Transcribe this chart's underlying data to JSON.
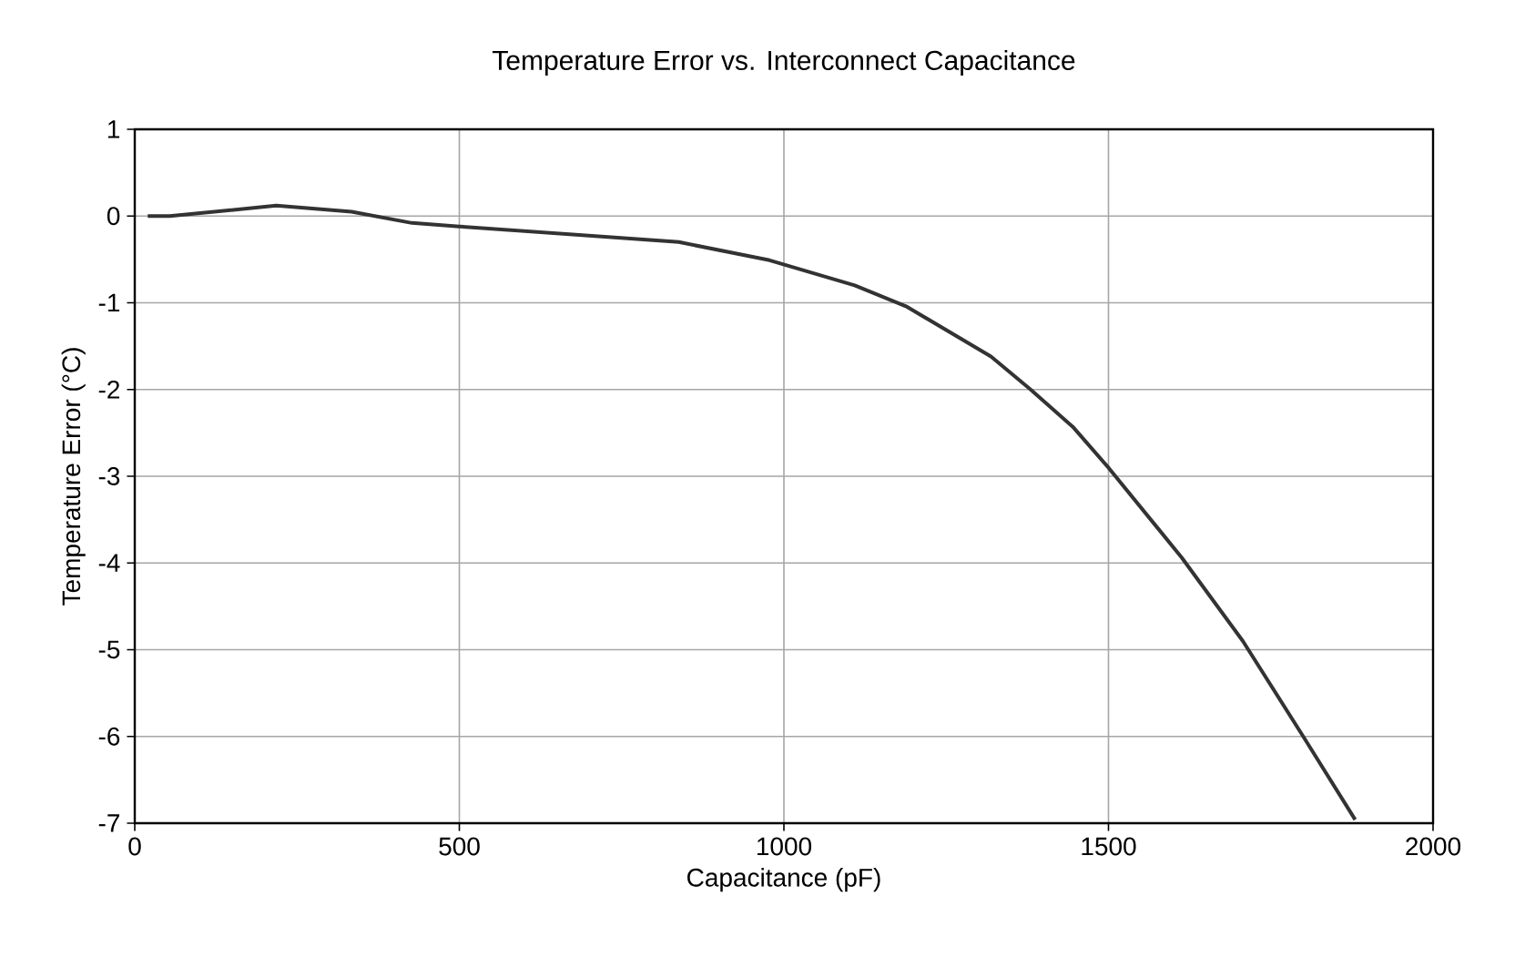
{
  "chart_data": {
    "type": "line",
    "title": "Temperature Error vs. Interconnect Capacitance",
    "xlabel": "Capacitance (pF)",
    "ylabel": "Temperature Error (°C)",
    "x": [
      20,
      54,
      218,
      334,
      427,
      500,
      838,
      978,
      1109,
      1188,
      1319,
      1380,
      1445,
      1501,
      1613,
      1707,
      1800,
      1880
    ],
    "series": [
      {
        "color": "#333333",
        "values": [
          0,
          0,
          0.12,
          0.05,
          -0.08,
          -0.12,
          -0.3,
          -0.51,
          -0.8,
          -1.04,
          -1.62,
          -2.0,
          -2.43,
          -2.91,
          -3.94,
          -4.9,
          -6.0,
          -6.96
        ]
      }
    ],
    "xlim": [
      0,
      2000
    ],
    "ylim": [
      -7,
      1
    ],
    "xticks": [
      0,
      500,
      1000,
      1500,
      2000
    ],
    "yticks": [
      -7,
      -6,
      -5,
      -4,
      -3,
      -2,
      -1,
      0,
      1
    ],
    "grid": true,
    "marker": "none",
    "line_style": "solid"
  }
}
